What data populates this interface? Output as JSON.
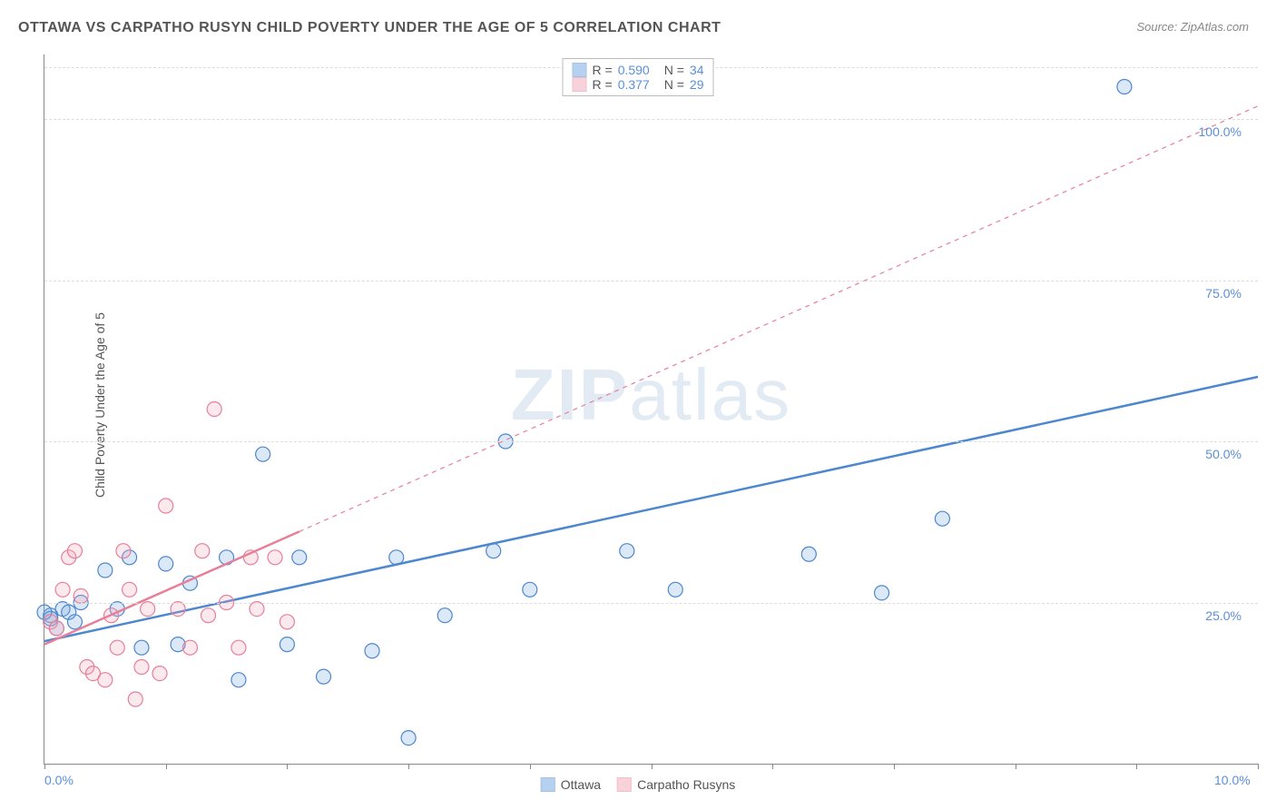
{
  "title": "OTTAWA VS CARPATHO RUSYN CHILD POVERTY UNDER THE AGE OF 5 CORRELATION CHART",
  "source_label": "Source: ZipAtlas.com",
  "y_axis_label": "Child Poverty Under the Age of 5",
  "watermark_a": "ZIP",
  "watermark_b": "atlas",
  "chart": {
    "type": "scatter",
    "background_color": "#ffffff",
    "grid_color": "#dddddd",
    "axis_color": "#888888",
    "xlim": [
      0,
      10
    ],
    "ylim": [
      0,
      110
    ],
    "x_ticks": [
      0,
      1,
      2,
      3,
      4,
      5,
      6,
      7,
      8,
      9,
      10
    ],
    "x_tick_labels": {
      "0": "0.0%",
      "10": "10.0%"
    },
    "y_gridlines": [
      25,
      50,
      75,
      100,
      108
    ],
    "y_tick_labels": {
      "25": "25.0%",
      "50": "50.0%",
      "75": "75.0%",
      "100": "100.0%"
    },
    "label_fontsize": 14,
    "label_color": "#5b8fd9",
    "marker_radius": 8,
    "marker_stroke_width": 1.2,
    "marker_fill_opacity": 0.25
  },
  "series": [
    {
      "name": "Ottawa",
      "color": "#6fa3e0",
      "stroke": "#4d87cf",
      "points": [
        [
          0.05,
          23
        ],
        [
          0.1,
          21
        ],
        [
          0.15,
          24
        ],
        [
          0.2,
          23.5
        ],
        [
          0.25,
          22
        ],
        [
          0.3,
          25
        ],
        [
          0.5,
          30
        ],
        [
          0.6,
          24
        ],
        [
          0.7,
          32
        ],
        [
          0.8,
          18
        ],
        [
          1.0,
          31
        ],
        [
          1.1,
          18.5
        ],
        [
          1.2,
          28
        ],
        [
          1.5,
          32
        ],
        [
          1.6,
          13
        ],
        [
          1.8,
          48
        ],
        [
          2.0,
          18.5
        ],
        [
          2.1,
          32
        ],
        [
          2.3,
          13.5
        ],
        [
          2.7,
          17.5
        ],
        [
          2.9,
          32
        ],
        [
          3.0,
          4
        ],
        [
          3.3,
          23
        ],
        [
          3.7,
          33
        ],
        [
          3.8,
          50
        ],
        [
          4.0,
          27
        ],
        [
          4.8,
          33
        ],
        [
          5.2,
          27
        ],
        [
          6.3,
          32.5
        ],
        [
          6.9,
          26.5
        ],
        [
          7.4,
          38
        ],
        [
          8.9,
          105
        ],
        [
          0.05,
          22.5
        ],
        [
          0.0,
          23.5
        ]
      ],
      "regression": {
        "R": "0.590",
        "N": "34",
        "line": {
          "x1": 0,
          "y1": 19,
          "x2": 10,
          "y2": 60,
          "width": 2.5,
          "dash": "none"
        }
      }
    },
    {
      "name": "Carpatho Rusyns",
      "color": "#f2a6b8",
      "stroke": "#e77f99",
      "points": [
        [
          0.05,
          22
        ],
        [
          0.1,
          21
        ],
        [
          0.15,
          27
        ],
        [
          0.2,
          32
        ],
        [
          0.25,
          33
        ],
        [
          0.3,
          26
        ],
        [
          0.35,
          15
        ],
        [
          0.4,
          14
        ],
        [
          0.5,
          13
        ],
        [
          0.55,
          23
        ],
        [
          0.6,
          18
        ],
        [
          0.65,
          33
        ],
        [
          0.7,
          27
        ],
        [
          0.75,
          10
        ],
        [
          0.8,
          15
        ],
        [
          0.85,
          24
        ],
        [
          0.95,
          14
        ],
        [
          1.0,
          40
        ],
        [
          1.1,
          24
        ],
        [
          1.2,
          18
        ],
        [
          1.3,
          33
        ],
        [
          1.35,
          23
        ],
        [
          1.4,
          55
        ],
        [
          1.5,
          25
        ],
        [
          1.6,
          18
        ],
        [
          1.7,
          32
        ],
        [
          1.75,
          24
        ],
        [
          1.9,
          32
        ],
        [
          2.0,
          22
        ]
      ],
      "regression": {
        "R": "0.377",
        "N": "29",
        "line": {
          "x1": 0,
          "y1": 18.5,
          "x2": 2.1,
          "y2": 36,
          "width": 2.5,
          "dash": "none",
          "ext_x2": 10,
          "ext_y2": 102,
          "ext_dash": "5,5",
          "ext_width": 1.2
        }
      }
    }
  ],
  "legend_top": {
    "r_label": "R =",
    "n_label": "N ="
  },
  "legend_bottom": [
    {
      "label": "Ottawa",
      "color": "#6fa3e0",
      "stroke": "#4d87cf"
    },
    {
      "label": "Carpatho Rusyns",
      "color": "#f2a6b8",
      "stroke": "#e77f99"
    }
  ]
}
